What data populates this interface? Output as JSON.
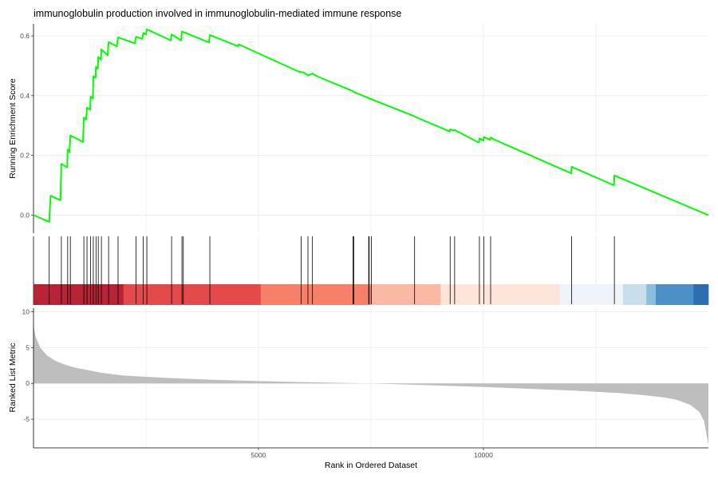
{
  "chart_data": {
    "type": "line",
    "title": "immunoglobulin production involved in immunoglobulin-mediated immune response",
    "xlabel": "Rank in Ordered Dataset",
    "xlim": [
      1,
      15000
    ],
    "x_ticks": [
      5000,
      10000
    ],
    "x_tick_labels": [
      "5000",
      "10000"
    ],
    "x_grid": [
      2500,
      5000,
      7500,
      10000,
      12500
    ],
    "panels": {
      "enrichment": {
        "ylabel": "Running Enrichment Score",
        "ylim": [
          -0.06,
          0.64
        ],
        "y_ticks": [
          0.0,
          0.2,
          0.4,
          0.6
        ],
        "y_tick_labels": [
          "0.0",
          "0.2",
          "0.4",
          "0.6"
        ],
        "color": "#00ff00",
        "series": [
          {
            "x": [
              1,
              350,
              380,
              600,
              620,
              750,
              760,
              800,
              820,
              1100,
              1120,
              1170,
              1190,
              1260,
              1270,
              1320,
              1330,
              1380,
              1390,
              1430,
              1440,
              1500,
              1510,
              1650,
              1670,
              1850,
              1880,
              2250,
              2280,
              2420,
              2440,
              2500,
              2520,
              3050,
              3070,
              3280,
              3300,
              3900,
              3920,
              4550,
              4560,
              5900,
              6000,
              6100,
              6200,
              6300,
              7100,
              7120,
              7450,
              7460,
              7500,
              7510,
              8450,
              8470,
              9250,
              9260,
              9350,
              9360,
              9900,
              9910,
              10000,
              10010,
              10150,
              10160,
              10200,
              10210,
              11950,
              11960,
              12900,
              12910,
              15000
            ],
            "y": [
              0.0,
              -0.022,
              0.065,
              0.05,
              0.172,
              0.16,
              0.22,
              0.21,
              0.267,
              0.245,
              0.327,
              0.32,
              0.36,
              0.353,
              0.397,
              0.39,
              0.465,
              0.46,
              0.497,
              0.49,
              0.53,
              0.52,
              0.555,
              0.535,
              0.58,
              0.565,
              0.595,
              0.575,
              0.597,
              0.59,
              0.61,
              0.605,
              0.622,
              0.585,
              0.605,
              0.585,
              0.615,
              0.578,
              0.603,
              0.565,
              0.572,
              0.48,
              0.478,
              0.468,
              0.474,
              0.465,
              0.415,
              0.412,
              0.392,
              0.39,
              0.39,
              0.388,
              0.332,
              0.33,
              0.28,
              0.287,
              0.283,
              0.285,
              0.243,
              0.257,
              0.25,
              0.262,
              0.252,
              0.26,
              0.257,
              0.255,
              0.14,
              0.162,
              0.1,
              0.133,
              0.0
            ]
          }
        ]
      },
      "hits": {
        "positions": [
          350,
          620,
          760,
          820,
          1120,
          1190,
          1270,
          1330,
          1390,
          1440,
          1510,
          1670,
          1880,
          2280,
          2440,
          2520,
          3070,
          3300,
          3330,
          3920,
          5950,
          6100,
          6200,
          7100,
          7120,
          7450,
          7460,
          7510,
          8470,
          9260,
          9360,
          9910,
          10010,
          10160,
          11960,
          12910
        ]
      },
      "color_bar": {
        "segments": [
          {
            "from": 1,
            "to": 2000,
            "color": "#b2182b"
          },
          {
            "from": 2000,
            "to": 5050,
            "color": "#e34040"
          },
          {
            "from": 5050,
            "to": 7500,
            "color": "#f87860"
          },
          {
            "from": 7500,
            "to": 9050,
            "color": "#fbb49d"
          },
          {
            "from": 9050,
            "to": 11700,
            "color": "#fde4d8"
          },
          {
            "from": 11700,
            "to": 13100,
            "color": "#eef3fa"
          },
          {
            "from": 13100,
            "to": 13620,
            "color": "#c6dbea"
          },
          {
            "from": 13620,
            "to": 13830,
            "color": "#84bad9"
          },
          {
            "from": 13830,
            "to": 14670,
            "color": "#4389c4"
          },
          {
            "from": 14670,
            "to": 15000,
            "color": "#2166ac"
          }
        ]
      },
      "ranked_metric": {
        "ylabel": "Ranked List Metric",
        "ylim": [
          -9.0,
          10.5
        ],
        "y_ticks": [
          -5,
          0,
          5,
          10
        ],
        "y_tick_labels": [
          "-5",
          "0",
          "5",
          "10"
        ],
        "color": "#bebebe",
        "x": [
          1,
          50,
          150,
          300,
          500,
          750,
          1000,
          1500,
          2000,
          3000,
          4000,
          5000,
          6000,
          7000,
          7500,
          8000,
          9000,
          10000,
          11000,
          12000,
          13000,
          13500,
          14000,
          14300,
          14600,
          14800,
          14900,
          15000
        ],
        "y": [
          8.0,
          6.5,
          5.0,
          3.9,
          3.1,
          2.5,
          2.1,
          1.5,
          1.1,
          0.75,
          0.5,
          0.32,
          0.18,
          0.06,
          0.0,
          -0.1,
          -0.3,
          -0.5,
          -0.75,
          -1.0,
          -1.35,
          -1.6,
          -1.95,
          -2.3,
          -3.0,
          -4.0,
          -5.2,
          -8.6
        ]
      }
    }
  }
}
